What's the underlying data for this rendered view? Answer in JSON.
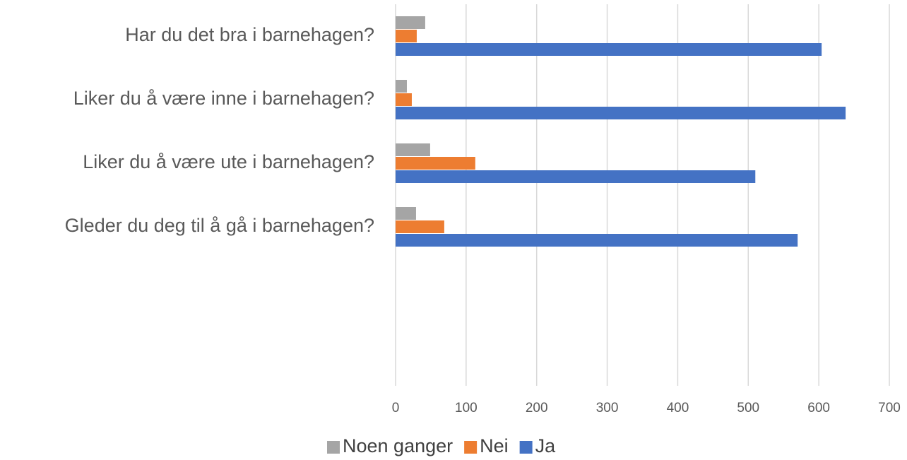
{
  "chart_data": {
    "type": "hbar",
    "categories": [
      "Har du det bra i barnehagen?",
      "Liker du å være inne i barnehagen?",
      "Liker du å være ute i barnehagen?",
      "Gleder du deg til å gå i barnehagen?",
      null,
      null
    ],
    "series": [
      {
        "name": "Noen ganger",
        "color": "#a5a5a5",
        "values": [
          42,
          16,
          49,
          29,
          null,
          null
        ]
      },
      {
        "name": "Nei",
        "color": "#ed7d31",
        "values": [
          30,
          23,
          113,
          69,
          null,
          null
        ]
      },
      {
        "name": "Ja",
        "color": "#4472c4",
        "values": [
          604,
          638,
          510,
          570,
          null,
          null
        ]
      }
    ],
    "xlim": [
      0,
      700
    ],
    "xticks": [
      0,
      100,
      200,
      300,
      400,
      500,
      600,
      700
    ],
    "grid": true,
    "legend": "bottom"
  }
}
